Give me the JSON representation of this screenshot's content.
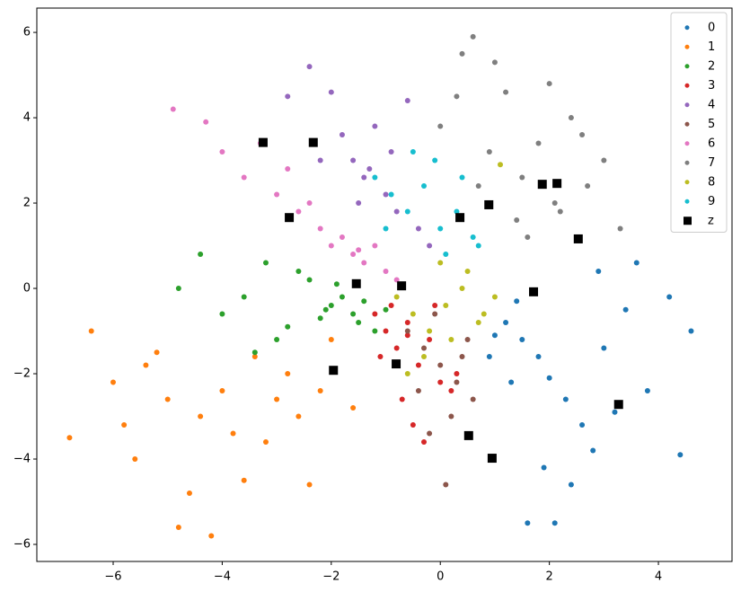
{
  "chart_data": {
    "type": "scatter",
    "xlim": [
      -7.4,
      5.35
    ],
    "ylim": [
      -6.4,
      6.57
    ],
    "xticks": [
      {
        "value": -6,
        "label": "−6"
      },
      {
        "value": -4,
        "label": "−4"
      },
      {
        "value": -2,
        "label": "−2"
      },
      0,
      2,
      4
    ],
    "yticks": [
      {
        "value": -6,
        "label": "−6"
      },
      {
        "value": -4,
        "label": "−4"
      },
      {
        "value": -2,
        "label": "−2"
      },
      0,
      2,
      4,
      6
    ],
    "legend": "upper right",
    "series": [
      {
        "name": "0",
        "color": "#1f77b4",
        "marker": "circle",
        "x": [
          1.2,
          1.5,
          1.8,
          2.0,
          2.3,
          2.6,
          3.0,
          3.4,
          3.8,
          4.2,
          4.6,
          1.0,
          1.4,
          1.9,
          2.4,
          2.8,
          3.2,
          1.6,
          2.1,
          0.9,
          1.3,
          2.9,
          3.6,
          4.4
        ],
        "y": [
          -0.8,
          -1.2,
          -1.6,
          -2.1,
          -2.6,
          -3.2,
          -1.4,
          -0.5,
          -2.4,
          -0.2,
          -1.0,
          -1.1,
          -0.3,
          -4.2,
          -4.6,
          -3.8,
          -2.9,
          -5.5,
          -5.5,
          -1.6,
          -2.2,
          0.4,
          0.6,
          -3.9
        ]
      },
      {
        "name": "1",
        "color": "#ff7f0e",
        "marker": "circle",
        "x": [
          -6.8,
          -6.4,
          -6.0,
          -5.6,
          -5.2,
          -4.8,
          -4.4,
          -4.0,
          -3.6,
          -3.2,
          -2.8,
          -2.4,
          -2.0,
          -1.6,
          -5.8,
          -5.0,
          -4.6,
          -3.8,
          -3.0,
          -2.6,
          -4.2,
          -5.4,
          -3.4,
          -2.2
        ],
        "y": [
          -3.5,
          -1.0,
          -2.2,
          -4.0,
          -1.5,
          -5.6,
          -3.0,
          -2.4,
          -4.5,
          -3.6,
          -2.0,
          -4.6,
          -1.2,
          -2.8,
          -3.2,
          -2.6,
          -4.8,
          -3.4,
          -2.6,
          -3.0,
          -5.8,
          -1.8,
          -1.6,
          -2.4
        ]
      },
      {
        "name": "2",
        "color": "#2ca02c",
        "marker": "circle",
        "x": [
          -4.8,
          -4.4,
          -4.0,
          -3.6,
          -3.2,
          -2.8,
          -2.4,
          -2.0,
          -1.8,
          -1.6,
          -1.4,
          -1.2,
          -1.0,
          -2.2,
          -2.6,
          -3.0,
          -3.4,
          -1.9,
          -2.1,
          -1.5
        ],
        "y": [
          0.0,
          0.8,
          -0.6,
          -0.2,
          0.6,
          -0.9,
          0.2,
          -0.4,
          -0.2,
          -0.6,
          -0.3,
          -1.0,
          -0.5,
          -0.7,
          0.4,
          -1.2,
          -1.5,
          0.1,
          -0.5,
          -0.8
        ]
      },
      {
        "name": "3",
        "color": "#d62728",
        "marker": "circle",
        "x": [
          -1.2,
          -1.0,
          -0.8,
          -0.6,
          -0.4,
          -0.2,
          0.0,
          0.2,
          -0.9,
          -0.5,
          -0.3,
          -0.7,
          -1.1,
          -0.1,
          0.3,
          -0.6
        ],
        "y": [
          -0.6,
          -1.0,
          -1.4,
          -0.8,
          -1.8,
          -1.2,
          -2.2,
          -2.4,
          -0.4,
          -3.2,
          -3.6,
          -2.6,
          -1.6,
          -0.4,
          -2.0,
          -1.1
        ]
      },
      {
        "name": "4",
        "color": "#9467bd",
        "marker": "circle",
        "x": [
          -2.8,
          -2.4,
          -2.0,
          -1.8,
          -1.6,
          -1.4,
          -1.2,
          -1.0,
          -0.8,
          -0.6,
          -0.4,
          -0.2,
          -2.2,
          -1.5,
          -0.9,
          -1.3
        ],
        "y": [
          4.5,
          5.2,
          4.6,
          3.6,
          3.0,
          2.6,
          3.8,
          2.2,
          1.8,
          4.4,
          1.4,
          1.0,
          3.0,
          2.0,
          3.2,
          2.8
        ]
      },
      {
        "name": "5",
        "color": "#8c564b",
        "marker": "circle",
        "x": [
          -0.6,
          -0.3,
          0.0,
          0.3,
          0.6,
          -0.2,
          0.2,
          0.5,
          -0.4,
          0.1,
          -0.1,
          0.4
        ],
        "y": [
          -1.0,
          -1.4,
          -1.8,
          -2.2,
          -2.6,
          -3.4,
          -3.0,
          -1.2,
          -2.4,
          -4.6,
          -0.6,
          -1.6
        ]
      },
      {
        "name": "6",
        "color": "#e377c2",
        "marker": "circle",
        "x": [
          -4.9,
          -4.3,
          -4.0,
          -3.6,
          -3.3,
          -3.0,
          -2.6,
          -2.2,
          -2.0,
          -1.8,
          -1.6,
          -1.4,
          -1.2,
          -1.0,
          -0.8,
          -2.4,
          -2.8,
          -1.5
        ],
        "y": [
          4.2,
          3.9,
          3.2,
          2.6,
          3.4,
          2.2,
          1.8,
          1.4,
          1.0,
          1.2,
          0.8,
          0.6,
          1.0,
          0.4,
          0.2,
          2.0,
          2.8,
          0.9
        ]
      },
      {
        "name": "7",
        "color": "#7f7f7f",
        "marker": "circle",
        "x": [
          0.0,
          0.3,
          0.6,
          0.9,
          1.2,
          1.5,
          1.8,
          2.1,
          2.4,
          2.7,
          3.0,
          3.3,
          0.4,
          1.0,
          1.4,
          2.0,
          2.6,
          0.7,
          1.6,
          2.2
        ],
        "y": [
          3.8,
          4.5,
          5.9,
          3.2,
          4.6,
          2.6,
          3.4,
          2.0,
          4.0,
          2.4,
          3.0,
          1.4,
          5.5,
          5.3,
          1.6,
          4.8,
          3.6,
          2.4,
          1.2,
          1.8
        ]
      },
      {
        "name": "8",
        "color": "#bcbd22",
        "marker": "circle",
        "x": [
          -0.8,
          -0.5,
          -0.2,
          0.1,
          0.4,
          0.7,
          1.0,
          -0.3,
          0.2,
          0.5,
          0.8,
          -0.6,
          0.0,
          1.1
        ],
        "y": [
          -0.2,
          -0.6,
          -1.0,
          -0.4,
          0.0,
          -0.8,
          -0.2,
          -1.6,
          -1.2,
          0.4,
          -0.6,
          -2.0,
          0.6,
          2.9
        ]
      },
      {
        "name": "9",
        "color": "#17becf",
        "marker": "circle",
        "x": [
          -1.2,
          -0.9,
          -0.6,
          -0.3,
          0.0,
          0.3,
          0.6,
          0.9,
          -0.5,
          0.1,
          0.4,
          0.7,
          -0.1,
          -1.0
        ],
        "y": [
          2.6,
          2.2,
          1.8,
          2.4,
          1.4,
          1.8,
          1.2,
          2.0,
          3.2,
          0.8,
          2.6,
          1.0,
          3.0,
          1.4
        ]
      },
      {
        "name": "z",
        "color": "#000000",
        "marker": "square",
        "x": [
          -3.25,
          -2.33,
          -2.77,
          -1.54,
          -0.71,
          -1.96,
          -0.81,
          0.36,
          0.89,
          1.87,
          2.14,
          2.53,
          1.71,
          3.27,
          0.52,
          0.95
        ],
        "y": [
          3.42,
          3.42,
          1.66,
          0.11,
          0.06,
          -1.92,
          -1.77,
          1.66,
          1.96,
          2.44,
          2.46,
          1.16,
          -0.08,
          -2.72,
          -3.45,
          -3.98
        ]
      }
    ]
  }
}
